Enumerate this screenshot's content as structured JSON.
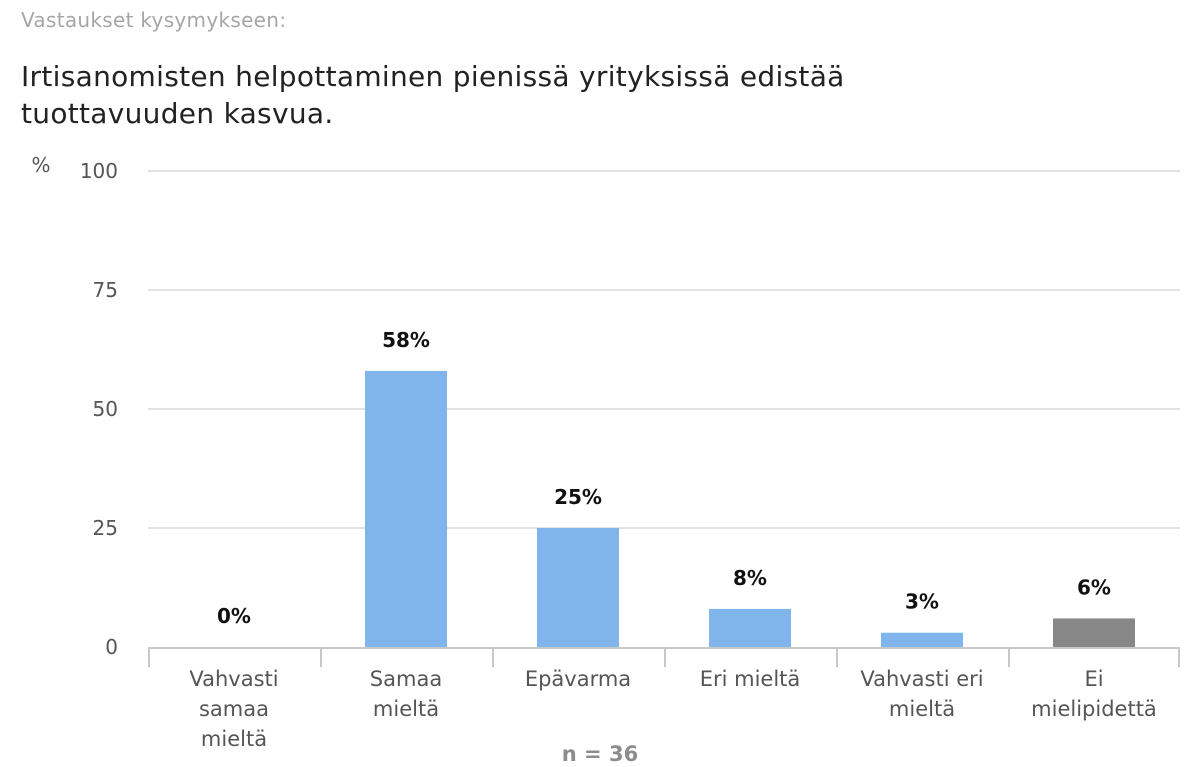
{
  "header": {
    "pre_title": "Vastaukset kysymykseen:",
    "question": "Irtisanomisten helpottaminen pienissä yrityksissä edistää tuottavuuden kasvua."
  },
  "chart_data": {
    "type": "bar",
    "title": "Irtisanomisten helpottaminen pienissä yrityksissä edistää tuottavuuden kasvua.",
    "ylabel": "%",
    "xlabel": "",
    "ylim": [
      0,
      100
    ],
    "yticks": [
      0,
      25,
      50,
      75,
      100
    ],
    "grid": true,
    "categories": [
      [
        "Vahvasti",
        "samaa",
        "mieltä"
      ],
      [
        "Samaa",
        "mieltä"
      ],
      [
        "Epävarma"
      ],
      [
        "Eri mieltä"
      ],
      [
        "Vahvasti eri",
        "mieltä"
      ],
      [
        "Ei",
        "mielipidettä"
      ]
    ],
    "values": [
      0,
      58,
      25,
      8,
      3,
      6
    ],
    "data_labels": [
      "0%",
      "58%",
      "25%",
      "8%",
      "3%",
      "6%"
    ],
    "colors": [
      "#7fb5ea",
      "#7fb5ea",
      "#7fb5ea",
      "#7fb5ea",
      "#7fb5ea",
      "#878787"
    ],
    "note": "n = 36"
  },
  "style": {
    "bar_color": "#7fb5ea",
    "neutral_bar_color": "#878787",
    "grid_color": "#d9d9d9",
    "axis_color": "#c8c8c8",
    "tick_label_color": "#555555",
    "category_label_color": "#555555",
    "data_label_color": "#111111",
    "note_color": "#8c8c8c"
  }
}
